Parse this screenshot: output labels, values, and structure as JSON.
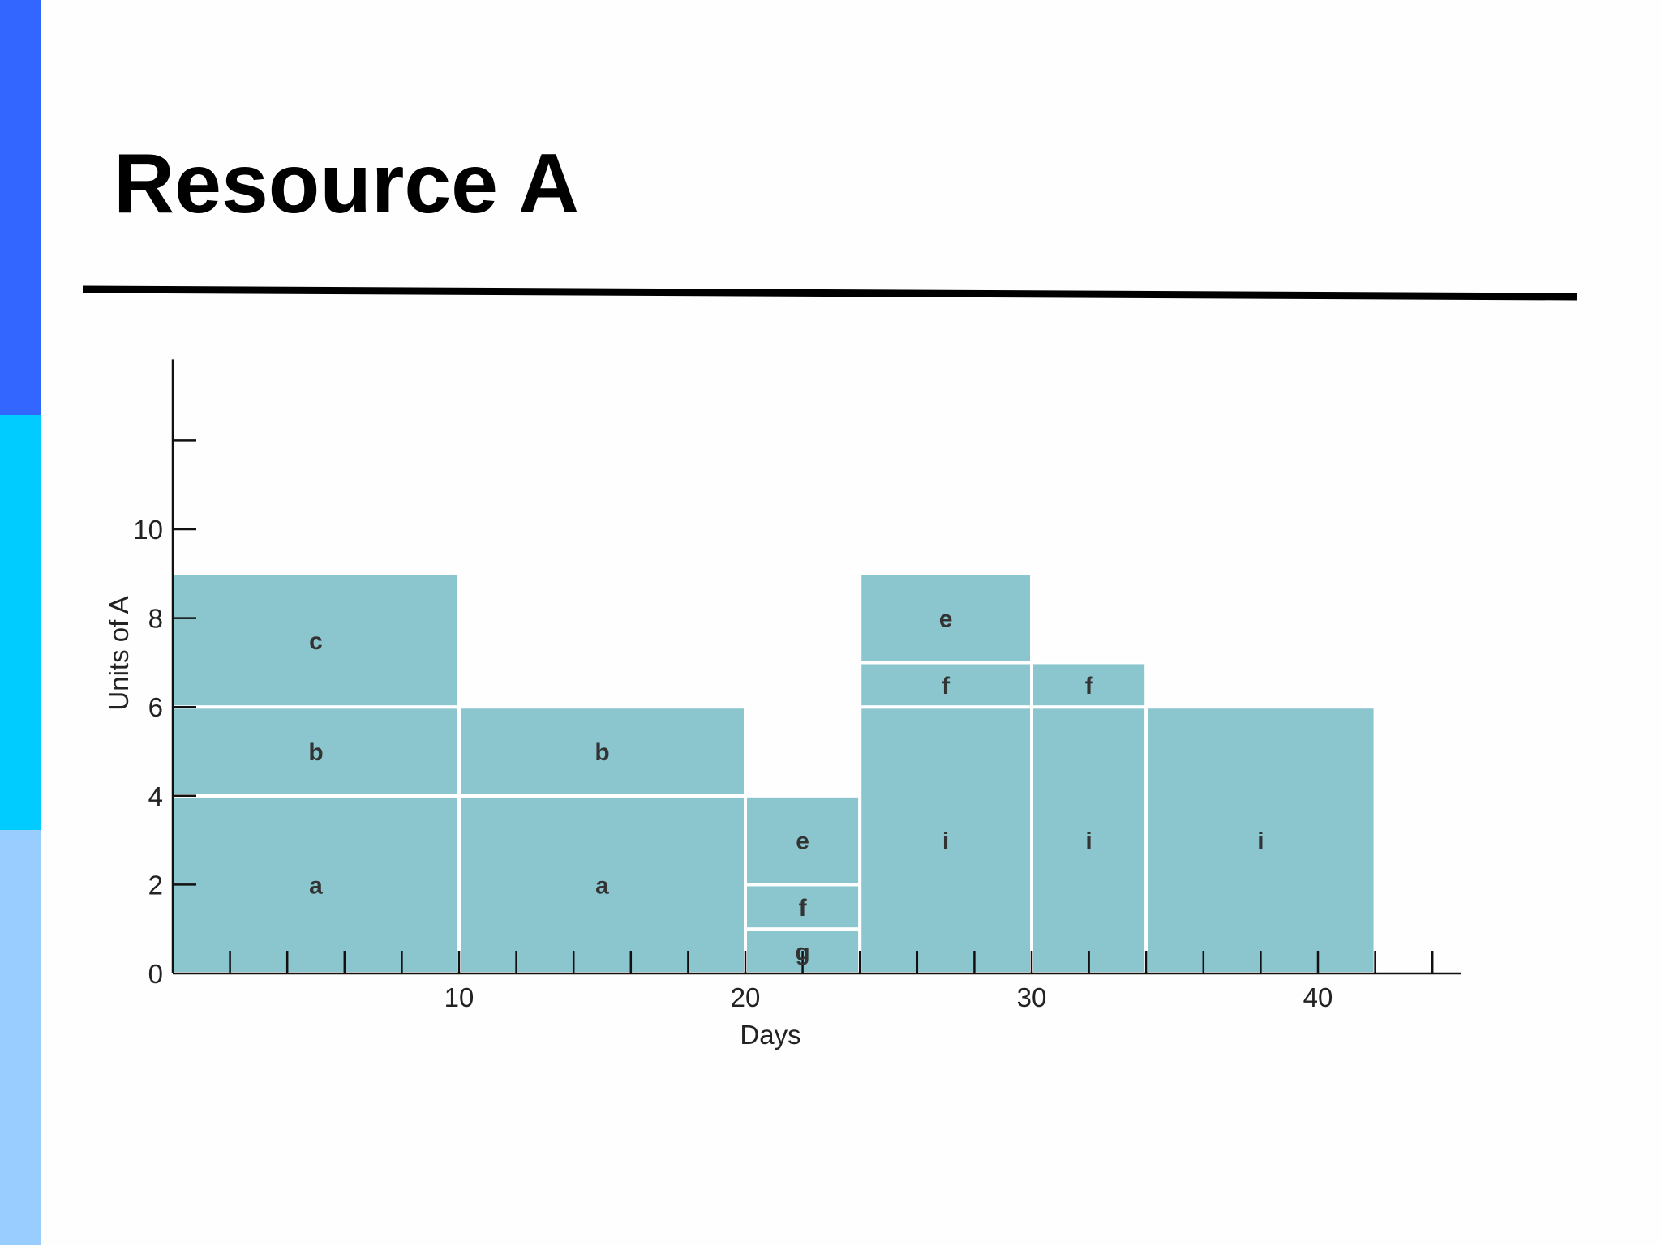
{
  "slide": {
    "title": "Resource A",
    "accent_colors": [
      "#3366ff",
      "#00ccff",
      "#99ccff"
    ],
    "rule_color": "#000000"
  },
  "chart_data": {
    "type": "bar",
    "subtype": "stacked resource loading profile",
    "title": "",
    "xlabel": "Days",
    "ylabel": "Units of A",
    "xlim": [
      0,
      45
    ],
    "ylim": [
      0,
      12
    ],
    "x_ticks_labeled": [
      10,
      20,
      30,
      40
    ],
    "x_minor_tick_step": 2,
    "y_ticks_labeled": [
      0,
      2,
      4,
      6,
      8,
      10
    ],
    "y_ticks_unlabeled": [
      12
    ],
    "grid": false,
    "legend": "none",
    "bar_color": "#8bc6cf",
    "segment_border_color": "#ffffff",
    "segments": [
      {
        "label": "a",
        "x_start": 0,
        "x_end": 10,
        "y_start": 0,
        "y_end": 4
      },
      {
        "label": "b",
        "x_start": 0,
        "x_end": 10,
        "y_start": 4,
        "y_end": 6
      },
      {
        "label": "c",
        "x_start": 0,
        "x_end": 10,
        "y_start": 6,
        "y_end": 9
      },
      {
        "label": "a",
        "x_start": 10,
        "x_end": 20,
        "y_start": 0,
        "y_end": 4
      },
      {
        "label": "b",
        "x_start": 10,
        "x_end": 20,
        "y_start": 4,
        "y_end": 6
      },
      {
        "label": "g",
        "x_start": 20,
        "x_end": 24,
        "y_start": 0,
        "y_end": 1
      },
      {
        "label": "f",
        "x_start": 20,
        "x_end": 24,
        "y_start": 1,
        "y_end": 2
      },
      {
        "label": "e",
        "x_start": 20,
        "x_end": 24,
        "y_start": 2,
        "y_end": 4
      },
      {
        "label": "i",
        "x_start": 24,
        "x_end": 30,
        "y_start": 0,
        "y_end": 6
      },
      {
        "label": "f",
        "x_start": 24,
        "x_end": 30,
        "y_start": 6,
        "y_end": 7
      },
      {
        "label": "e",
        "x_start": 24,
        "x_end": 30,
        "y_start": 7,
        "y_end": 9
      },
      {
        "label": "i",
        "x_start": 30,
        "x_end": 34,
        "y_start": 0,
        "y_end": 6
      },
      {
        "label": "f",
        "x_start": 30,
        "x_end": 34,
        "y_start": 6,
        "y_end": 7
      },
      {
        "label": "i",
        "x_start": 34,
        "x_end": 42,
        "y_start": 0,
        "y_end": 6
      }
    ]
  }
}
